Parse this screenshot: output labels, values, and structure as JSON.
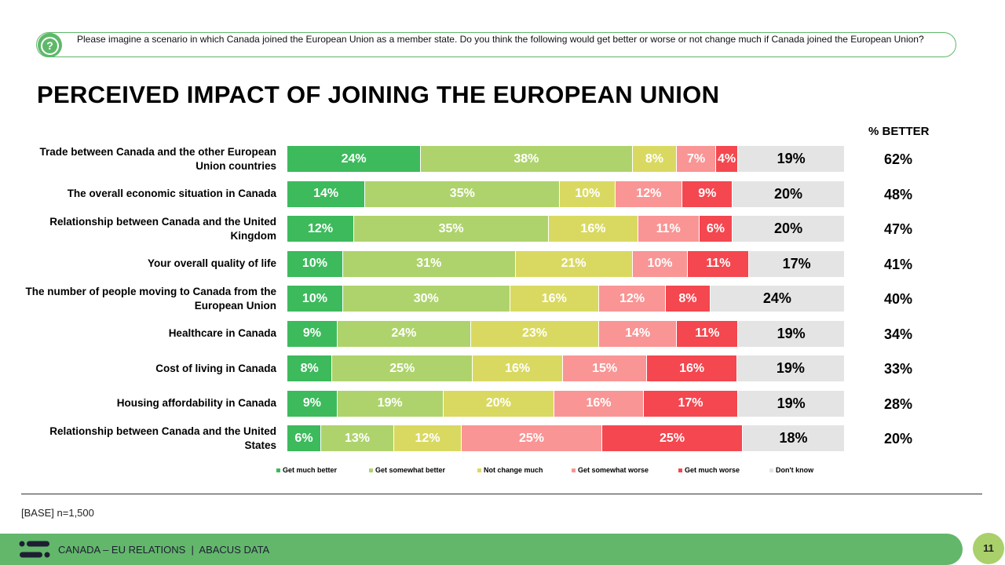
{
  "question": {
    "icon": "question-bubble-icon",
    "text": "Please imagine a scenario in which Canada joined the European Union as a member state. Do you think the following would get better or worse or not change much if Canada joined the European Union?"
  },
  "better_header": "% BETTER",
  "base": "[BASE] n=1,500",
  "footer": {
    "text": "CANADA – EU RELATIONS  |  ABACUS DATA",
    "page": "11"
  },
  "chart_data": {
    "type": "bar",
    "stacked": true,
    "orientation": "horizontal",
    "title": "PERCEIVED IMPACT OF JOINING THE EUROPEAN UNION",
    "categories": [
      "Trade between Canada and the other European Union countries",
      "The overall economic situation in Canada",
      "Relationship between Canada and the United Kingdom",
      "Your overall quality of life",
      "The number of people moving to Canada from the European Union",
      "Healthcare in Canada",
      "Cost of living in Canada",
      "Housing affordability in Canada",
      "Relationship between Canada and the United States"
    ],
    "series": [
      {
        "name": "Get much better",
        "color": "#3dba5c",
        "values": [
          24,
          14,
          12,
          10,
          10,
          9,
          8,
          9,
          6
        ]
      },
      {
        "name": "Get somewhat better",
        "color": "#aed36c",
        "values": [
          38,
          35,
          35,
          31,
          30,
          24,
          25,
          19,
          13
        ]
      },
      {
        "name": "Not change much",
        "color": "#d9d962",
        "values": [
          8,
          10,
          16,
          21,
          16,
          23,
          16,
          20,
          12
        ]
      },
      {
        "name": "Get somewhat worse",
        "color": "#f99595",
        "values": [
          7,
          12,
          11,
          10,
          12,
          14,
          15,
          16,
          25
        ]
      },
      {
        "name": "Get much worse",
        "color": "#f4474f",
        "values": [
          4,
          9,
          6,
          11,
          8,
          11,
          16,
          17,
          25
        ]
      },
      {
        "name": "Don't know",
        "color": "#e3e4e3",
        "values": [
          19,
          20,
          20,
          17,
          24,
          19,
          19,
          19,
          18
        ]
      }
    ],
    "percent_better": [
      62,
      48,
      47,
      41,
      40,
      34,
      33,
      28,
      20
    ],
    "legend_position": "bottom",
    "value_suffix": "%"
  }
}
